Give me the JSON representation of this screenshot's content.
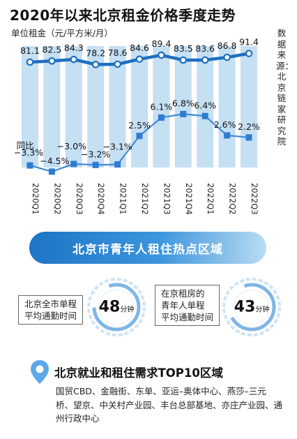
{
  "title": "2020年以来北京租金价格季度走势",
  "unit_label": "单位租金（元/平方米/月）",
  "source": "数据来源：北京链家研究院",
  "yoy_label": "同比",
  "chart_data": {
    "type": "bar+line",
    "categories": [
      "2020Q1",
      "2020Q2",
      "2020Q3",
      "2020Q4",
      "2021Q1",
      "2021Q2",
      "2021Q3",
      "2021Q4",
      "2022Q1",
      "2022Q2",
      "2022Q3"
    ],
    "series": [
      {
        "name": "单位租金（元/平方米/月）",
        "values": [
          81.1,
          82.5,
          84.3,
          78.2,
          78.6,
          84.6,
          89.4,
          83.5,
          83.6,
          86.8,
          91.4
        ],
        "labels": [
          "81.1",
          "82.5",
          "84.3",
          "78.2",
          "78.6",
          "84.6",
          "89.4",
          "83.5",
          "83.6",
          "86.8",
          "91.4"
        ]
      },
      {
        "name": "同比",
        "values": [
          -3.3,
          -4.5,
          -3.0,
          -3.2,
          -3.1,
          2.5,
          6.1,
          6.8,
          6.4,
          2.6,
          2.2
        ],
        "labels": [
          "−3.3%",
          "−4.5%",
          "−3.0%",
          "−3.2%",
          "−3.1%",
          "2.5%",
          "6.1%",
          "6.8%",
          "6.4%",
          "2.6%",
          "2.2%"
        ]
      }
    ],
    "colors": {
      "bar": "#c5dff3",
      "rent_line": "#1e6fc0",
      "yoy_line": "#3f8ad6",
      "yoy_marker": "#2f7bd0"
    }
  },
  "section_banner": "北京市青年人租住热点区域",
  "stats": [
    {
      "label_lines": [
        "北京全市单程",
        "平均通勤时间"
      ],
      "value": "48",
      "unit": "分钟"
    },
    {
      "label_lines": [
        "在京租房的",
        "青年人单程",
        "平均通勤时间"
      ],
      "value": "43",
      "unit": "分钟"
    }
  ],
  "top10": {
    "title": "北京就业和租住需求TOP10区域",
    "text": "国贸CBD、金融街、东单、亚运–奥体中心、燕莎–三元桥、望京、中关村产业园、丰台总部基地、亦庄产业园、通州行政中心"
  }
}
